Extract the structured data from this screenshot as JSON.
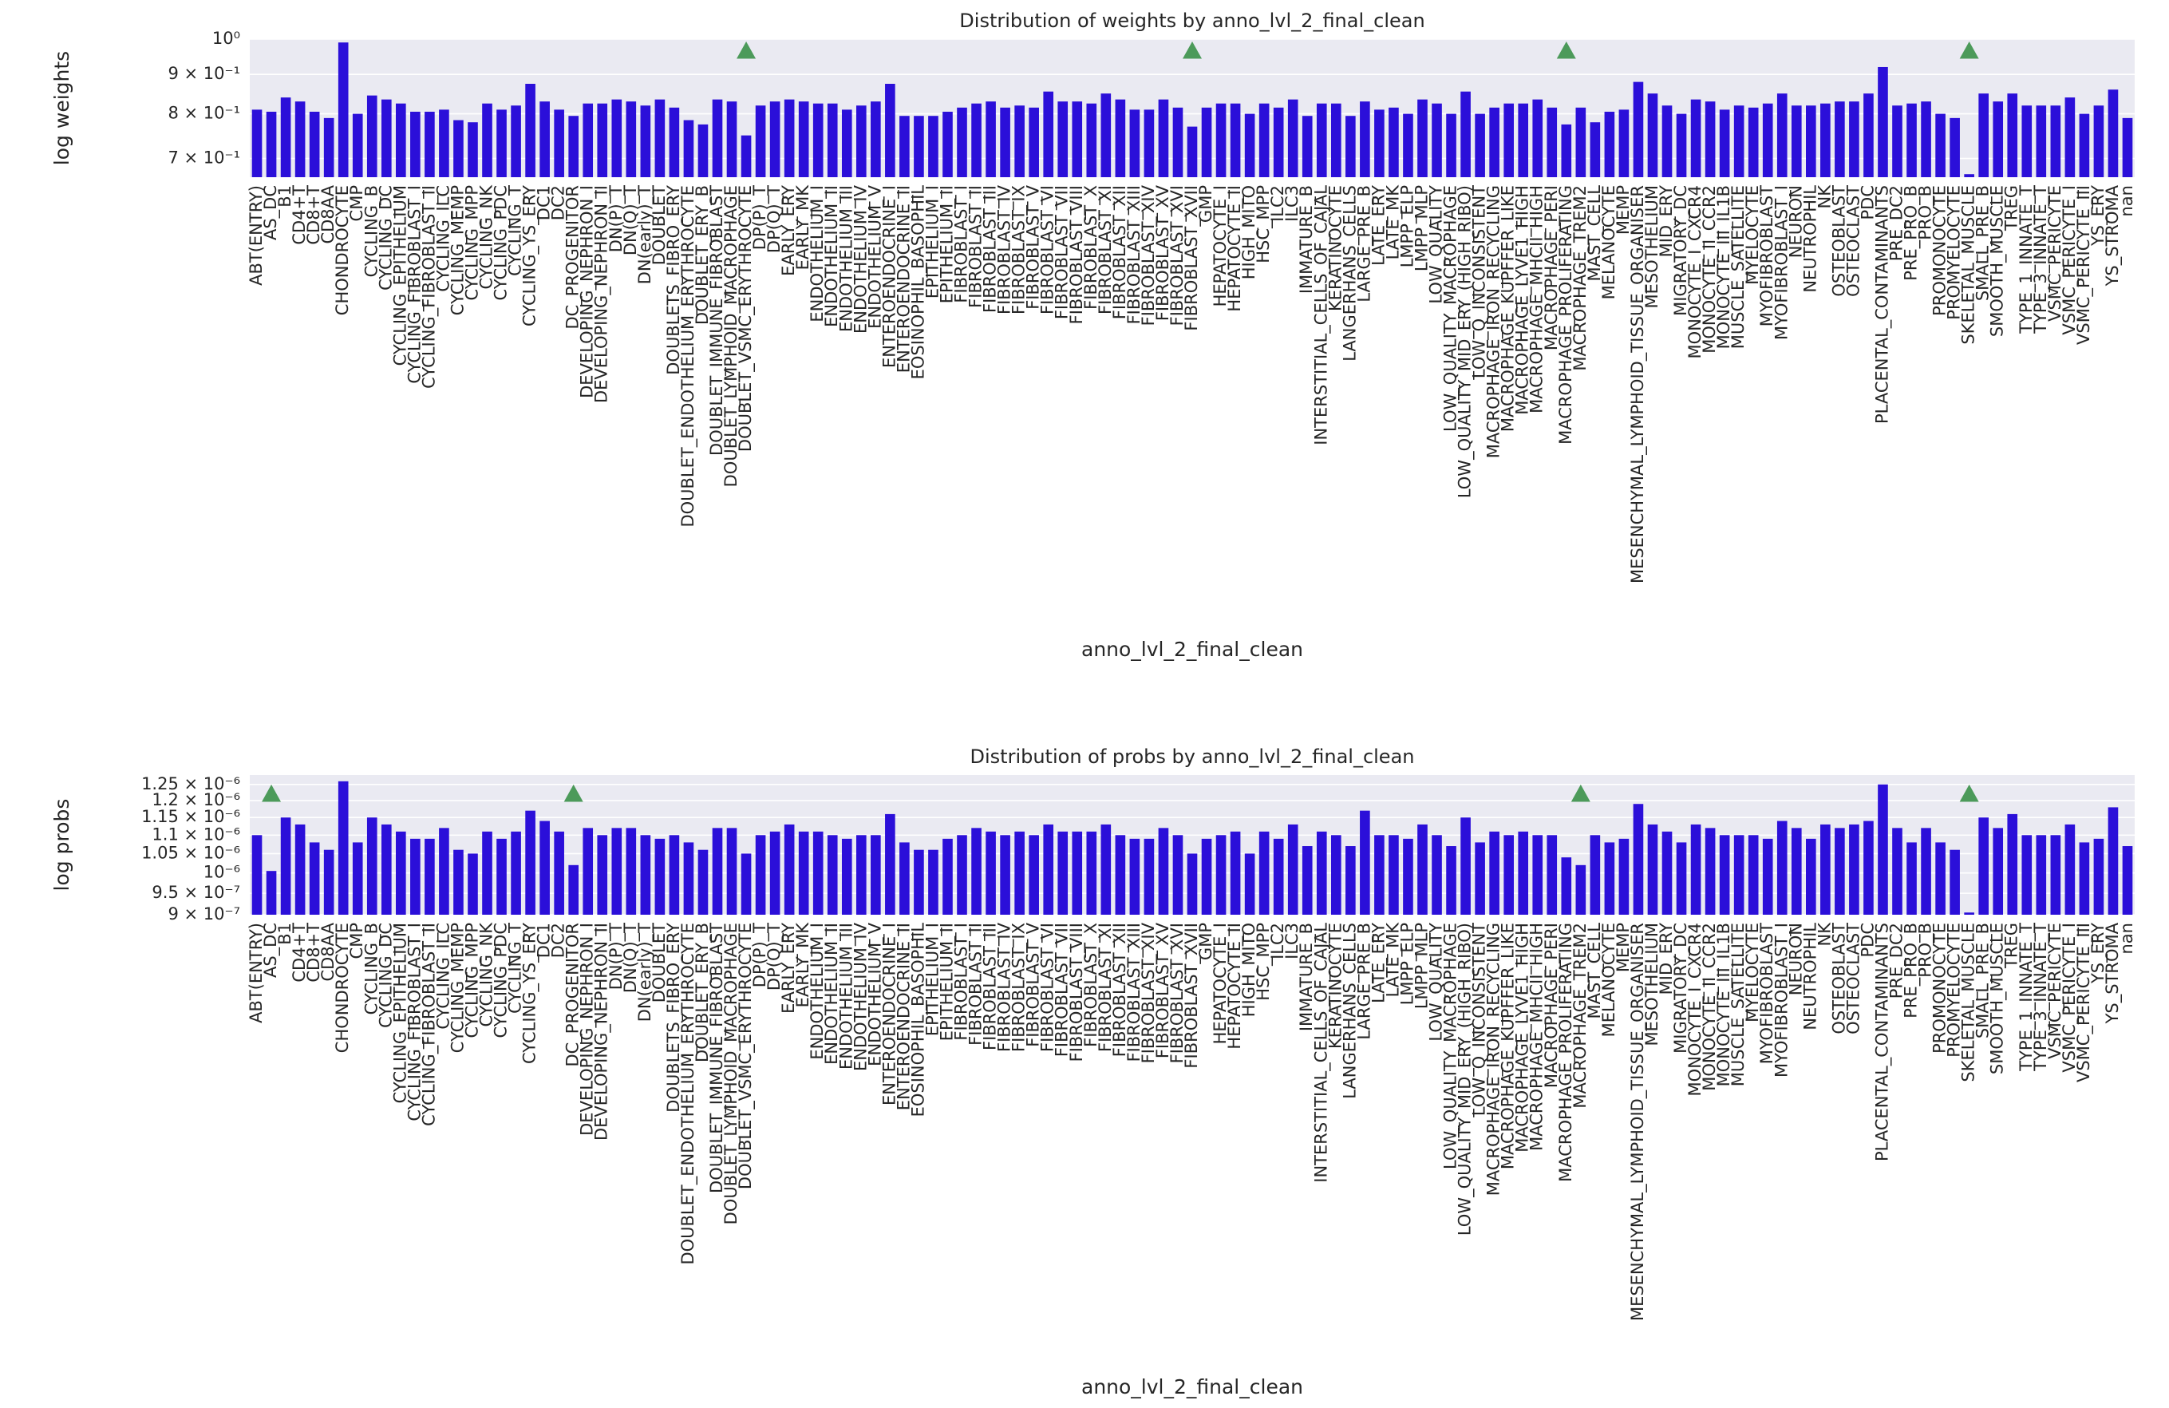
{
  "chart_data": [
    {
      "type": "bar",
      "title": "Distribution of weights by anno_lvl_2_final_clean",
      "xlabel": "anno_lvl_2_final_clean",
      "ylabel": "log weights",
      "categories": [
        "ABT(ENTRY)",
        "AS_DC",
        "B1",
        "CD4+T",
        "CD8+T",
        "CD8AA",
        "CHONDROCYTE",
        "CMP",
        "CYCLING_B",
        "CYCLING_DC",
        "CYCLING_EPITHELIUM",
        "CYCLING_FIBROBLAST_I",
        "CYCLING_FIBROBLAST_II",
        "CYCLING_ILC",
        "CYCLING_MEMP",
        "CYCLING_MPP",
        "CYCLING_NK",
        "CYCLING_PDC",
        "CYCLING_T",
        "CYCLING_YS_ERY",
        "DC1",
        "DC2",
        "DC_PROGENITOR",
        "DEVELOPING_NEPHRON_I",
        "DEVELOPING_NEPHRON_II",
        "DN(P)_T",
        "DN(Q)_T",
        "DN(early)_T",
        "DOUBLET",
        "DOUBLETS_FIBRO_ERY",
        "DOUBLET_ENDOTHELIUM_ERYTHROCYTE",
        "DOUBLET_ERY_B",
        "DOUBLET_IMMUNE_FIBROBLAST",
        "DOUBLET_LYMPHOID_MACROPHAGE",
        "DOUBLET_VSMC_ERYTHROCYTE",
        "DP(P)_T",
        "DP(Q)_T",
        "EARLY_ERY",
        "EARLY_MK",
        "ENDOTHELIUM_I",
        "ENDOTHELIUM_II",
        "ENDOTHELIUM_III",
        "ENDOTHELIUM_IV",
        "ENDOTHELIUM_V",
        "ENTEROENDOCRINE_I",
        "ENTEROENDOCRINE_II",
        "EOSINOPHIL_BASOPHIL",
        "EPITHELIUM_I",
        "EPITHELIUM_II",
        "FIBROBLAST_I",
        "FIBROBLAST_II",
        "FIBROBLAST_III",
        "FIBROBLAST_IV",
        "FIBROBLAST_IX",
        "FIBROBLAST_V",
        "FIBROBLAST_VI",
        "FIBROBLAST_VII",
        "FIBROBLAST_VIII",
        "FIBROBLAST_X",
        "FIBROBLAST_XI",
        "FIBROBLAST_XII",
        "FIBROBLAST_XIII",
        "FIBROBLAST_XIV",
        "FIBROBLAST_XV",
        "FIBROBLAST_XVI",
        "FIBROBLAST_XVII",
        "GMP",
        "HEPATOCYTE_I",
        "HEPATOCYTE_II",
        "HIGH_MITO",
        "HSC_MPP",
        "ILC2",
        "ILC3",
        "IMMATURE_B",
        "INTERSTITIAL_CELLS_OF_CAJAL",
        "KERATINOCYTE",
        "LANGERHANS_CELLS",
        "LARGE_PRE_B",
        "LATE_ERY",
        "LATE_MK",
        "LMPP_ELP",
        "LMPP_MLP",
        "LOW_QUALITY",
        "LOW_QUALITY_MACROPHAGE",
        "LOW_QUALITY_MID_ERY_(HIGH_RIBO)",
        "LOW_Q_INCONSISTENT",
        "MACROPHAGE_IRON_RECYCLING",
        "MACROPHAGE_KUPFFER_LIKE",
        "MACROPHAGE_LYVE1_HIGH",
        "MACROPHAGE_MHCII_HIGH",
        "MACROPHAGE_PERI",
        "MACROPHAGE_PROLIFERATING",
        "MACROPHAGE_TREM2",
        "MAST_CELL",
        "MELANOCYTE",
        "MEMP",
        "MESENCHYMAL_LYMPHOID_TISSUE_ORGANISER",
        "MESOTHELIUM",
        "MID_ERY",
        "MIGRATORY_DC",
        "MONOCYTE_I_CXCR4",
        "MONOCYTE_II_CCR2",
        "MONOCYTE_III_IL1B",
        "MUSCLE_SATELLITE",
        "MYELOCYTE",
        "MYOFIBROBLAST",
        "MYOFIBROBLAST_I",
        "NEURON",
        "NEUTROPHIL",
        "NK",
        "OSTEOBLAST",
        "OSTEOCLAST",
        "PDC",
        "PLACENTAL_CONTAMINANTS",
        "PRE_DC2",
        "PRE_PRO_B",
        "PRO_B",
        "PROMONOCYTE",
        "PROMYELOCYTE",
        "SKELETAL_MUSCLE",
        "SMALL_PRE_B",
        "SMOOTH_MUSCLE",
        "TREG",
        "TYPE_1_INNATE_T",
        "TYPE_3_INNATE_T",
        "VSMC_PERICYTE",
        "VSMC_PERICYTE_I",
        "VSMC_PERICYTE_III",
        "YS_ERY",
        "YS_STROMA",
        "nan"
      ],
      "values": [
        0.81,
        0.805,
        0.84,
        0.83,
        0.805,
        0.79,
        0.99,
        0.8,
        0.845,
        0.835,
        0.825,
        0.805,
        0.805,
        0.81,
        0.785,
        0.78,
        0.825,
        0.81,
        0.82,
        0.875,
        0.83,
        0.81,
        0.795,
        0.825,
        0.825,
        0.835,
        0.83,
        0.82,
        0.835,
        0.815,
        0.785,
        0.775,
        0.835,
        0.83,
        0.75,
        0.82,
        0.83,
        0.835,
        0.83,
        0.825,
        0.825,
        0.81,
        0.82,
        0.83,
        0.875,
        0.795,
        0.795,
        0.795,
        0.805,
        0.815,
        0.825,
        0.83,
        0.815,
        0.82,
        0.815,
        0.855,
        0.83,
        0.83,
        0.825,
        0.85,
        0.835,
        0.81,
        0.81,
        0.835,
        0.815,
        0.77,
        0.815,
        0.825,
        0.825,
        0.8,
        0.825,
        0.815,
        0.835,
        0.795,
        0.825,
        0.825,
        0.795,
        0.83,
        0.81,
        0.815,
        0.8,
        0.835,
        0.825,
        0.8,
        0.855,
        0.8,
        0.815,
        0.825,
        0.825,
        0.835,
        0.815,
        0.775,
        0.815,
        0.78,
        0.805,
        0.81,
        0.88,
        0.85,
        0.82,
        0.8,
        0.835,
        0.83,
        0.81,
        0.82,
        0.815,
        0.825,
        0.85,
        0.82,
        0.82,
        0.825,
        0.83,
        0.83,
        0.85,
        0.92,
        0.82,
        0.825,
        0.83,
        0.8,
        0.79,
        0.668,
        0.85,
        0.83,
        0.85,
        0.82,
        0.82,
        0.82,
        0.84,
        0.8,
        0.82,
        0.86,
        0.79
      ],
      "color": "#2b0fd9",
      "log_y": true,
      "grid": true,
      "ylim": [
        0.662,
        1.0
      ],
      "yticks": [
        {
          "value": 0.7,
          "label": "7 × 10⁻¹"
        },
        {
          "value": 0.8,
          "label": "8 × 10⁻¹"
        },
        {
          "value": 0.9,
          "label": "9 × 10⁻¹"
        },
        {
          "value": 1.0,
          "label": "10⁰"
        }
      ],
      "markers": {
        "color": "#4c9a5a",
        "categories": [
          "DOUBLET_VSMC_ERYTHROCYTE",
          "FIBROBLAST_XVII",
          "MACROPHAGE_PROLIFERATING",
          "SKELETAL_MUSCLE"
        ],
        "values": [
          0.965,
          0.965,
          0.965,
          0.965
        ]
      }
    },
    {
      "type": "bar",
      "title": "Distribution of probs by anno_lvl_2_final_clean",
      "xlabel": "anno_lvl_2_final_clean",
      "ylabel": "log probs",
      "categories": [
        "ABT(ENTRY)",
        "AS_DC",
        "B1",
        "CD4+T",
        "CD8+T",
        "CD8AA",
        "CHONDROCYTE",
        "CMP",
        "CYCLING_B",
        "CYCLING_DC",
        "CYCLING_EPITHELIUM",
        "CYCLING_FIBROBLAST_I",
        "CYCLING_FIBROBLAST_II",
        "CYCLING_ILC",
        "CYCLING_MEMP",
        "CYCLING_MPP",
        "CYCLING_NK",
        "CYCLING_PDC",
        "CYCLING_T",
        "CYCLING_YS_ERY",
        "DC1",
        "DC2",
        "DC_PROGENITOR",
        "DEVELOPING_NEPHRON_I",
        "DEVELOPING_NEPHRON_II",
        "DN(P)_T",
        "DN(Q)_T",
        "DN(early)_T",
        "DOUBLET",
        "DOUBLETS_FIBRO_ERY",
        "DOUBLET_ENDOTHELIUM_ERYTHROCYTE",
        "DOUBLET_ERY_B",
        "DOUBLET_IMMUNE_FIBROBLAST",
        "DOUBLET_LYMPHOID_MACROPHAGE",
        "DOUBLET_VSMC_ERYTHROCYTE",
        "DP(P)_T",
        "DP(Q)_T",
        "EARLY_ERY",
        "EARLY_MK",
        "ENDOTHELIUM_I",
        "ENDOTHELIUM_II",
        "ENDOTHELIUM_III",
        "ENDOTHELIUM_IV",
        "ENDOTHELIUM_V",
        "ENTEROENDOCRINE_I",
        "ENTEROENDOCRINE_II",
        "EOSINOPHIL_BASOPHIL",
        "EPITHELIUM_I",
        "EPITHELIUM_II",
        "FIBROBLAST_I",
        "FIBROBLAST_II",
        "FIBROBLAST_III",
        "FIBROBLAST_IV",
        "FIBROBLAST_IX",
        "FIBROBLAST_V",
        "FIBROBLAST_VI",
        "FIBROBLAST_VII",
        "FIBROBLAST_VIII",
        "FIBROBLAST_X",
        "FIBROBLAST_XI",
        "FIBROBLAST_XII",
        "FIBROBLAST_XIII",
        "FIBROBLAST_XIV",
        "FIBROBLAST_XV",
        "FIBROBLAST_XVI",
        "FIBROBLAST_XVII",
        "GMP",
        "HEPATOCYTE_I",
        "HEPATOCYTE_II",
        "HIGH_MITO",
        "HSC_MPP",
        "ILC2",
        "ILC3",
        "IMMATURE_B",
        "INTERSTITIAL_CELLS_OF_CAJAL",
        "KERATINOCYTE",
        "LANGERHANS_CELLS",
        "LARGE_PRE_B",
        "LATE_ERY",
        "LATE_MK",
        "LMPP_ELP",
        "LMPP_MLP",
        "LOW_QUALITY",
        "LOW_QUALITY_MACROPHAGE",
        "LOW_QUALITY_MID_ERY_(HIGH_RIBO)",
        "LOW_Q_INCONSISTENT",
        "MACROPHAGE_IRON_RECYCLING",
        "MACROPHAGE_KUPFFER_LIKE",
        "MACROPHAGE_LYVE1_HIGH",
        "MACROPHAGE_MHCII_HIGH",
        "MACROPHAGE_PERI",
        "MACROPHAGE_PROLIFERATING",
        "MACROPHAGE_TREM2",
        "MAST_CELL",
        "MELANOCYTE",
        "MEMP",
        "MESENCHYMAL_LYMPHOID_TISSUE_ORGANISER",
        "MESOTHELIUM",
        "MID_ERY",
        "MIGRATORY_DC",
        "MONOCYTE_I_CXCR4",
        "MONOCYTE_II_CCR2",
        "MONOCYTE_III_IL1B",
        "MUSCLE_SATELLITE",
        "MYELOCYTE",
        "MYOFIBROBLAST",
        "MYOFIBROBLAST_I",
        "NEURON",
        "NEUTROPHIL",
        "NK",
        "OSTEOBLAST",
        "OSTEOCLAST",
        "PDC",
        "PLACENTAL_CONTAMINANTS",
        "PRE_DC2",
        "PRE_PRO_B",
        "PRO_B",
        "PROMONOCYTE",
        "PROMYELOCYTE",
        "SKELETAL_MUSCLE",
        "SMALL_PRE_B",
        "SMOOTH_MUSCLE",
        "TREG",
        "TYPE_1_INNATE_T",
        "TYPE_3_INNATE_T",
        "VSMC_PERICYTE",
        "VSMC_PERICYTE_I",
        "VSMC_PERICYTE_III",
        "YS_ERY",
        "YS_STROMA",
        "nan"
      ],
      "values": [
        1.1e-06,
        1.005e-06,
        1.15e-06,
        1.13e-06,
        1.08e-06,
        1.06e-06,
        1.26e-06,
        1.08e-06,
        1.15e-06,
        1.13e-06,
        1.11e-06,
        1.09e-06,
        1.09e-06,
        1.12e-06,
        1.06e-06,
        1.05e-06,
        1.11e-06,
        1.09e-06,
        1.11e-06,
        1.17e-06,
        1.14e-06,
        1.11e-06,
        1.02e-06,
        1.12e-06,
        1.1e-06,
        1.12e-06,
        1.12e-06,
        1.1e-06,
        1.09e-06,
        1.1e-06,
        1.08e-06,
        1.06e-06,
        1.12e-06,
        1.12e-06,
        1.05e-06,
        1.1e-06,
        1.11e-06,
        1.13e-06,
        1.11e-06,
        1.11e-06,
        1.1e-06,
        1.09e-06,
        1.1e-06,
        1.1e-06,
        1.16e-06,
        1.08e-06,
        1.06e-06,
        1.06e-06,
        1.09e-06,
        1.1e-06,
        1.12e-06,
        1.11e-06,
        1.1e-06,
        1.11e-06,
        1.1e-06,
        1.13e-06,
        1.11e-06,
        1.11e-06,
        1.11e-06,
        1.13e-06,
        1.1e-06,
        1.09e-06,
        1.09e-06,
        1.12e-06,
        1.1e-06,
        1.05e-06,
        1.09e-06,
        1.1e-06,
        1.11e-06,
        1.05e-06,
        1.11e-06,
        1.09e-06,
        1.13e-06,
        1.07e-06,
        1.11e-06,
        1.1e-06,
        1.07e-06,
        1.17e-06,
        1.1e-06,
        1.1e-06,
        1.09e-06,
        1.13e-06,
        1.1e-06,
        1.07e-06,
        1.15e-06,
        1.08e-06,
        1.11e-06,
        1.1e-06,
        1.11e-06,
        1.1e-06,
        1.1e-06,
        1.04e-06,
        1.02e-06,
        1.1e-06,
        1.08e-06,
        1.09e-06,
        1.19e-06,
        1.13e-06,
        1.11e-06,
        1.08e-06,
        1.13e-06,
        1.12e-06,
        1.1e-06,
        1.1e-06,
        1.1e-06,
        1.09e-06,
        1.14e-06,
        1.12e-06,
        1.09e-06,
        1.13e-06,
        1.12e-06,
        1.13e-06,
        1.14e-06,
        1.25e-06,
        1.12e-06,
        1.08e-06,
        1.12e-06,
        1.08e-06,
        1.06e-06,
        9.05e-07,
        1.15e-06,
        1.12e-06,
        1.16e-06,
        1.1e-06,
        1.1e-06,
        1.1e-06,
        1.13e-06,
        1.08e-06,
        1.09e-06,
        1.18e-06,
        1.07e-06
      ],
      "color": "#2b0fd9",
      "log_y": true,
      "grid": true,
      "ylim": [
        9e-07,
        1.28e-06
      ],
      "yticks": [
        {
          "value": 9e-07,
          "label": "9 × 10⁻⁷"
        },
        {
          "value": 9.5e-07,
          "label": "9.5 × 10⁻⁷"
        },
        {
          "value": 1e-06,
          "label": "10⁻⁶"
        },
        {
          "value": 1.05e-06,
          "label": "1.05 × 10⁻⁶"
        },
        {
          "value": 1.1e-06,
          "label": "1.1 × 10⁻⁶"
        },
        {
          "value": 1.15e-06,
          "label": "1.15 × 10⁻⁶"
        },
        {
          "value": 1.2e-06,
          "label": "1.2 × 10⁻⁶"
        },
        {
          "value": 1.25e-06,
          "label": "1.25 × 10⁻⁶"
        }
      ],
      "markers": {
        "color": "#4c9a5a",
        "categories": [
          "AS_DC",
          "DC_PROGENITOR",
          "MACROPHAGE_TREM2",
          "SKELETAL_MUSCLE"
        ],
        "values": [
          1.22e-06,
          1.22e-06,
          1.22e-06,
          1.22e-06
        ]
      }
    }
  ]
}
